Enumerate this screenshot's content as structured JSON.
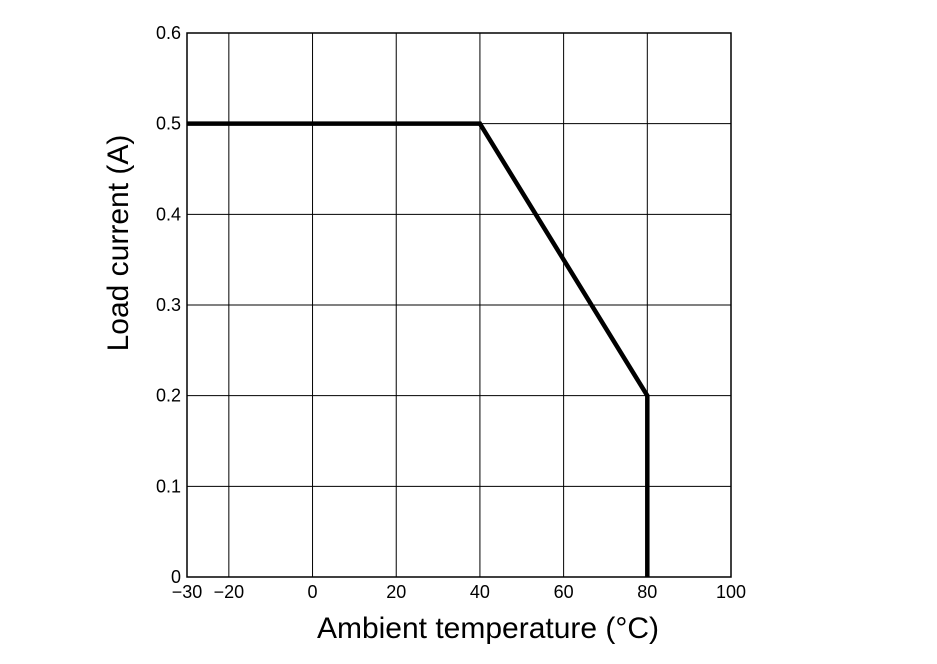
{
  "chart_data": {
    "type": "line",
    "title": "",
    "xlabel": "Ambient temperature (°C)",
    "ylabel": "Load current (A)",
    "xlim": [
      -30,
      100
    ],
    "ylim": [
      0,
      0.6
    ],
    "grid": true,
    "x_gridlines": [
      -20,
      0,
      20,
      40,
      60,
      80
    ],
    "y_gridlines": [
      0.1,
      0.2,
      0.3,
      0.4,
      0.5
    ],
    "x_ticks": [
      {
        "value": -30,
        "label": "−30"
      },
      {
        "value": -20,
        "label": "−20"
      },
      {
        "value": 0,
        "label": "0"
      },
      {
        "value": 20,
        "label": "20"
      },
      {
        "value": 40,
        "label": "40"
      },
      {
        "value": 60,
        "label": "60"
      },
      {
        "value": 80,
        "label": "80"
      },
      {
        "value": 100,
        "label": "100"
      }
    ],
    "y_ticks": [
      {
        "value": 0,
        "label": "0"
      },
      {
        "value": 0.1,
        "label": "0.1"
      },
      {
        "value": 0.2,
        "label": "0.2"
      },
      {
        "value": 0.3,
        "label": "0.3"
      },
      {
        "value": 0.4,
        "label": "0.4"
      },
      {
        "value": 0.5,
        "label": "0.5"
      },
      {
        "value": 0.6,
        "label": "0.6"
      }
    ],
    "series": [
      {
        "x": [
          -30,
          40,
          80,
          80
        ],
        "y": [
          0.5,
          0.5,
          0.2,
          0
        ]
      }
    ],
    "line_color": "#000000",
    "background": "#ffffff"
  }
}
